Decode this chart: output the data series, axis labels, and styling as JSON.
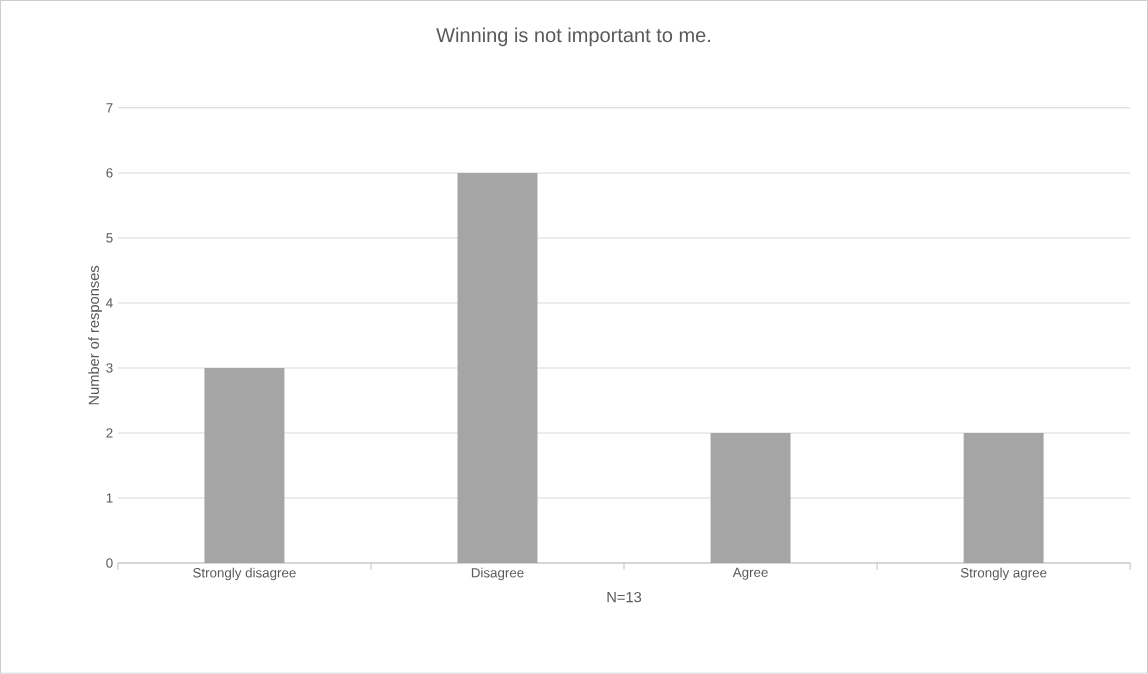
{
  "chart_data": {
    "type": "bar",
    "title": "Winning is not important to me.",
    "xlabel": "N=13",
    "ylabel": "Number of responses",
    "categories": [
      "Strongly disagree",
      "Disagree",
      "Agree",
      "Strongly agree"
    ],
    "values": [
      3,
      6,
      2,
      2
    ],
    "color": "#a5a5a5",
    "ylim": [
      0,
      7
    ],
    "yticks": [
      0,
      1,
      2,
      3,
      4,
      5,
      6,
      7
    ],
    "grid": "y"
  }
}
